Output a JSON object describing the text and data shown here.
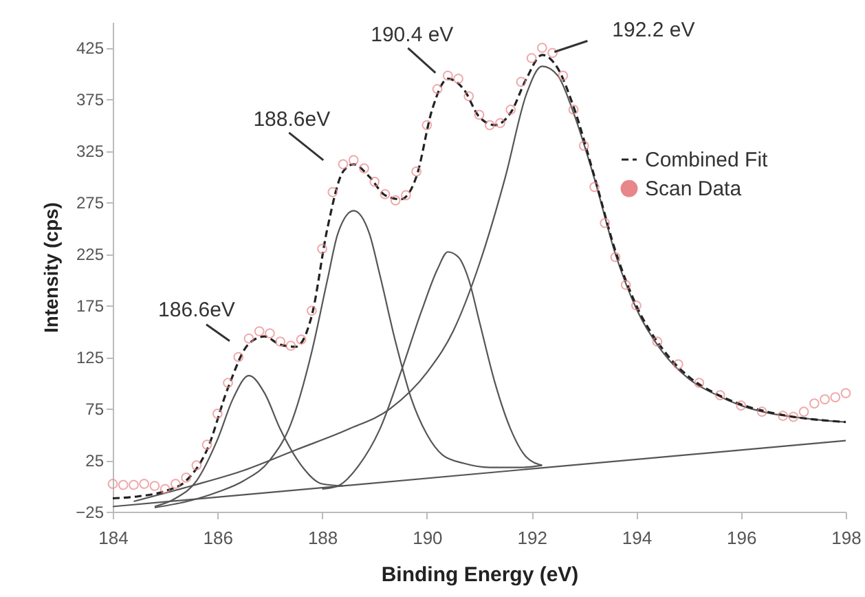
{
  "chart_data": {
    "type": "line",
    "xlabel": "Binding Energy (eV)",
    "ylabel": "Intensity (cps)",
    "xlim": [
      184,
      198
    ],
    "xticks": [
      184,
      186,
      188,
      190,
      192,
      194,
      196,
      198
    ],
    "ylim": [
      -25,
      450
    ],
    "yticks": [
      -25,
      25,
      75,
      125,
      175,
      225,
      275,
      325,
      375,
      425
    ],
    "legend": "right",
    "series": [
      {
        "type": "line",
        "color": "#555555",
        "line_style": "solid",
        "x": [
          184,
          198
        ],
        "values": [
          -20,
          44
        ]
      },
      {
        "type": "line",
        "color": "#555555",
        "line_style": "solid",
        "x": [
          184.8,
          185.2,
          185.6,
          186.0,
          186.3,
          186.6,
          186.9,
          187.2,
          187.6,
          188.0,
          188.4
        ],
        "values": [
          -20,
          -12,
          5,
          45,
          85,
          107,
          90,
          55,
          20,
          2,
          0
        ]
      },
      {
        "type": "line",
        "color": "#555555",
        "line_style": "solid",
        "x": [
          184.8,
          185.5,
          186.0,
          186.5,
          187.0,
          187.4,
          187.8,
          188.1,
          188.3,
          188.6,
          188.9,
          189.1,
          189.4,
          189.7,
          190.0,
          190.3,
          190.7,
          191.2,
          191.8,
          192.2
        ],
        "values": [
          -21,
          -14,
          -6,
          5,
          25,
          60,
          130,
          200,
          245,
          267,
          245,
          205,
          140,
          85,
          50,
          30,
          22,
          18,
          18,
          20
        ]
      },
      {
        "type": "line",
        "color": "#555555",
        "line_style": "solid",
        "x": [
          188.0,
          188.3,
          188.7,
          189.1,
          189.5,
          189.9,
          190.2,
          190.4,
          190.6,
          190.8,
          191.0,
          191.3,
          191.6,
          191.9,
          192.2
        ],
        "values": [
          -3,
          0,
          20,
          55,
          110,
          170,
          210,
          227,
          222,
          200,
          160,
          100,
          55,
          28,
          20
        ]
      },
      {
        "type": "line",
        "color": "#555555",
        "line_style": "solid",
        "x": [
          184.4,
          185.5,
          186.5,
          187.5,
          188.5,
          189.3,
          190.0,
          190.5,
          191.0,
          191.5,
          191.9,
          192.2,
          192.5,
          192.8,
          193.2,
          193.6,
          194.0,
          194.5,
          195.0,
          195.5,
          196.0,
          196.5,
          197.0,
          197.5,
          198.0
        ],
        "values": [
          -15,
          0,
          15,
          35,
          55,
          75,
          110,
          150,
          215,
          300,
          380,
          407,
          398,
          362,
          298,
          225,
          172,
          130,
          104,
          89,
          78,
          71,
          67,
          64,
          62
        ]
      },
      {
        "name": "Combined Fit",
        "type": "line",
        "color": "#222222",
        "line_style": "dashed",
        "x": [
          184.0,
          184.5,
          185.0,
          185.4,
          185.8,
          186.2,
          186.6,
          186.9,
          187.2,
          187.5,
          187.8,
          188.1,
          188.4,
          188.6,
          188.9,
          189.2,
          189.5,
          189.8,
          190.1,
          190.4,
          190.7,
          191.0,
          191.3,
          191.6,
          191.9,
          192.2,
          192.5,
          192.8,
          193.2,
          193.6,
          194.0,
          194.5,
          195.0,
          195.5,
          196.0,
          196.5,
          197.0,
          197.5,
          198.0
        ],
        "values": [
          -12,
          -10,
          -5,
          5,
          35,
          95,
          138,
          145,
          137,
          135,
          165,
          250,
          305,
          312,
          300,
          282,
          278,
          300,
          365,
          395,
          385,
          358,
          350,
          362,
          395,
          418,
          405,
          368,
          300,
          228,
          175,
          133,
          106,
          90,
          79,
          72,
          67,
          64,
          62
        ]
      },
      {
        "name": "Scan Data",
        "type": "scatter",
        "marker": "circle",
        "color": "#e8868a",
        "x": [
          184.0,
          184.2,
          184.4,
          184.6,
          184.8,
          185.0,
          185.2,
          185.4,
          185.6,
          185.8,
          186.0,
          186.2,
          186.4,
          186.6,
          186.8,
          187.0,
          187.2,
          187.4,
          187.6,
          187.8,
          188.0,
          188.2,
          188.4,
          188.6,
          188.8,
          189.0,
          189.2,
          189.4,
          189.6,
          189.8,
          190.0,
          190.2,
          190.4,
          190.6,
          190.8,
          191.0,
          191.2,
          191.4,
          191.6,
          191.8,
          192.0,
          192.2,
          192.4,
          192.6,
          192.8,
          193.0,
          193.2,
          193.4,
          193.6,
          193.8,
          194.0,
          194.4,
          194.8,
          195.2,
          195.6,
          196.0,
          196.4,
          196.8,
          197.0,
          197.2,
          197.4,
          197.6,
          197.8,
          198.0
        ],
        "values": [
          2,
          1,
          1,
          2,
          0,
          -3,
          2,
          8,
          20,
          40,
          70,
          100,
          125,
          143,
          150,
          148,
          140,
          136,
          142,
          170,
          230,
          285,
          312,
          316,
          308,
          295,
          283,
          277,
          282,
          305,
          350,
          385,
          398,
          395,
          378,
          360,
          350,
          352,
          365,
          392,
          415,
          425,
          420,
          398,
          365,
          330,
          290,
          255,
          222,
          195,
          175,
          140,
          118,
          100,
          88,
          78,
          72,
          68,
          67,
          72,
          80,
          84,
          86,
          90
        ]
      }
    ],
    "annotations": [
      {
        "text": "186.6eV",
        "x": 186.6,
        "y": 150
      },
      {
        "text": "188.6eV",
        "x": 188.6,
        "y": 316
      },
      {
        "text": "190.4 eV",
        "x": 190.4,
        "y": 398
      },
      {
        "text": "192.2 eV",
        "x": 192.2,
        "y": 425
      }
    ]
  }
}
